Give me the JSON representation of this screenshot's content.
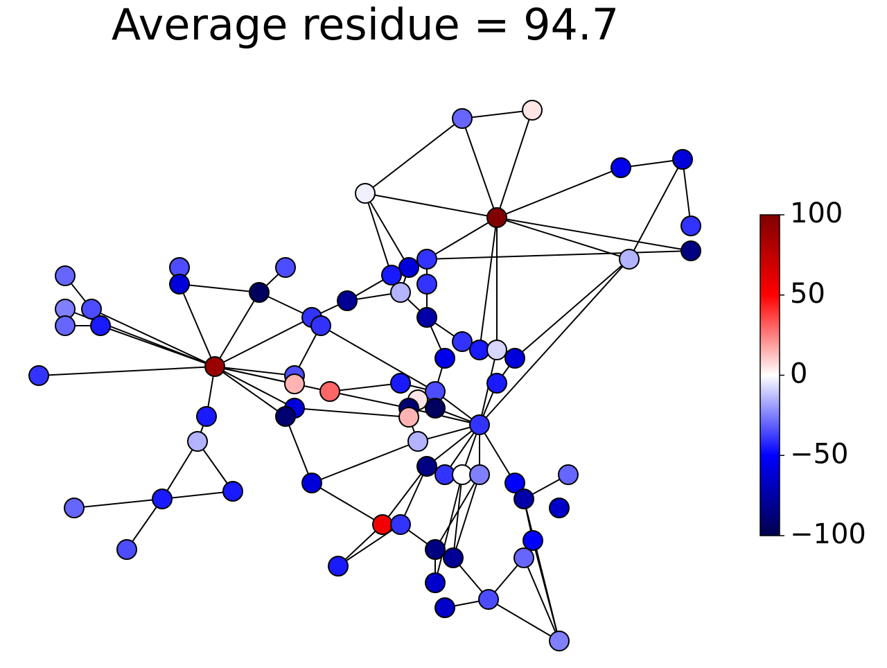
{
  "chart_data": {
    "type": "network",
    "title": "Average residue = 94.7",
    "colormap": "seismic",
    "node_values": [
      -30,
      5,
      -55,
      -60,
      -3,
      100,
      -40,
      -85,
      -15,
      -40,
      -60,
      -45,
      -40,
      -15,
      -80,
      -75,
      -95,
      -35,
      -35,
      -60,
      -30,
      -25,
      -35,
      -30,
      -45,
      -40,
      -40,
      -40,
      90,
      -40,
      -45,
      -8,
      -60,
      -55,
      -35,
      15,
      30,
      -45,
      -45,
      -35,
      5,
      -90,
      -95,
      15,
      -60,
      -90,
      -45,
      -40,
      -15,
      -15,
      -85,
      -60,
      -40,
      0,
      -25,
      -50,
      -30,
      -75,
      -30,
      -45,
      -45,
      -65,
      55,
      -40,
      -50,
      -35,
      -85,
      -80,
      -30,
      -45,
      -65,
      -65,
      -35,
      -25
    ],
    "clim": [
      -100,
      100
    ],
    "cticks": [
      100,
      50,
      0,
      {
        "value": -50,
        "label": "−50"
      },
      {
        "value": -100,
        "label": "−100"
      }
    ]
  }
}
